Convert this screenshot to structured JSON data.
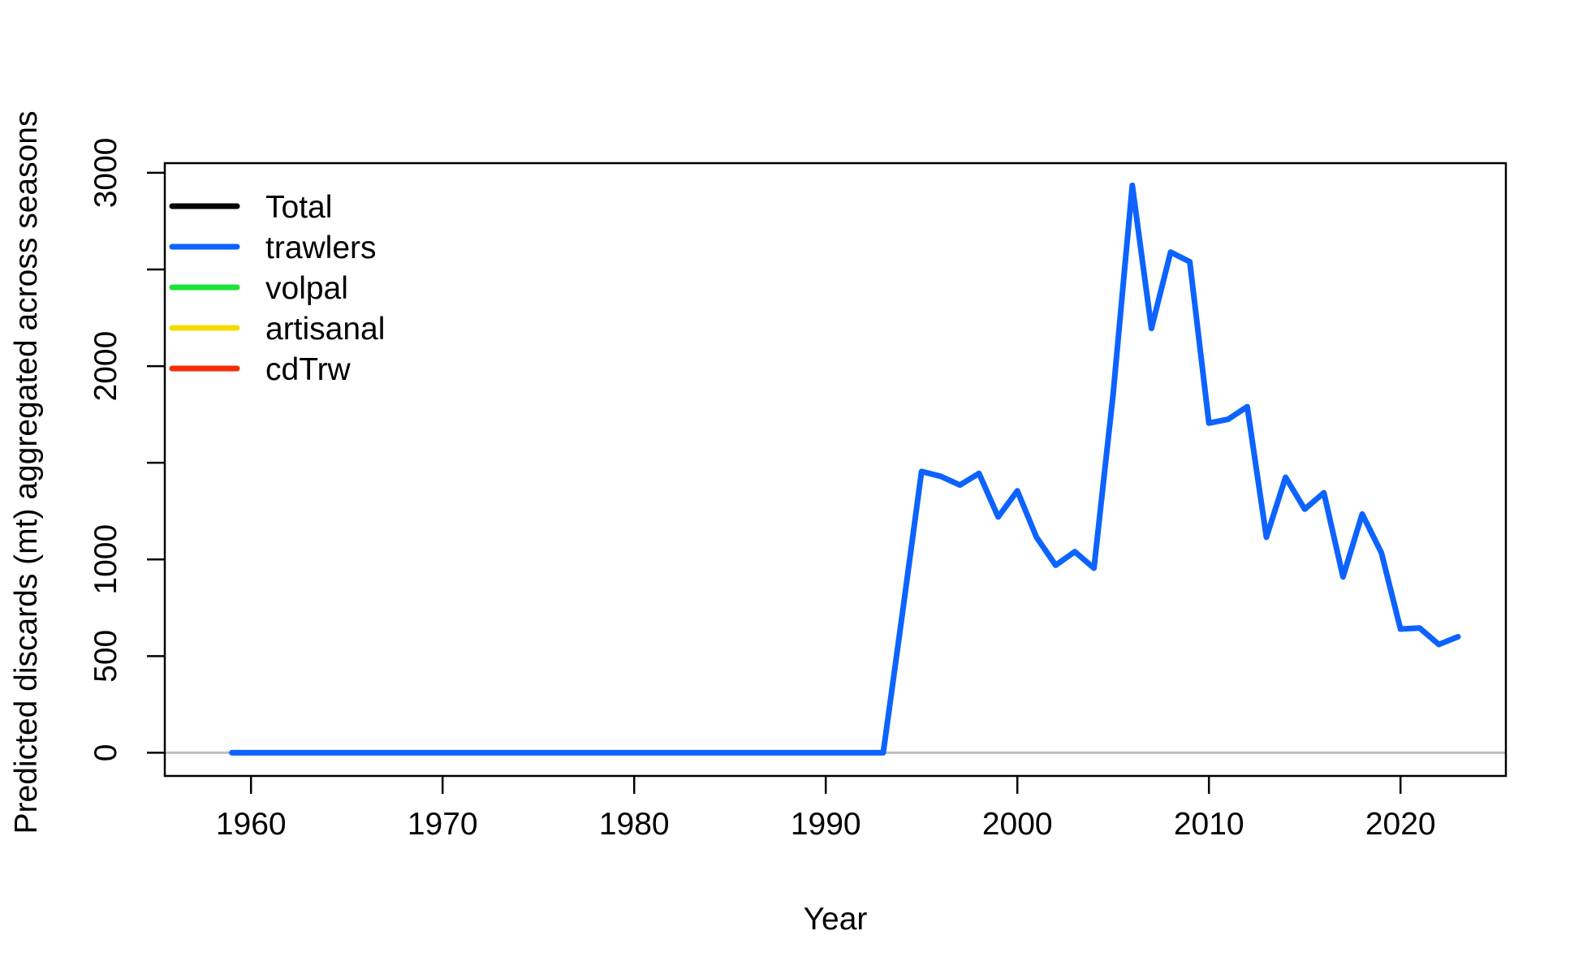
{
  "chart_data": {
    "type": "line",
    "title": "",
    "xlabel": "Year",
    "ylabel": "Predicted discards (mt) aggregated across seasons",
    "xlim": [
      1955.5,
      2025.5
    ],
    "ylim": [
      -120,
      3050
    ],
    "xticks": [
      1960,
      1970,
      1980,
      1990,
      2000,
      2010,
      2020
    ],
    "yticks": [
      0,
      500,
      1000,
      1500,
      2000,
      2500,
      3000
    ],
    "ytick_labels": [
      "0",
      "500",
      "1000",
      "",
      "2000",
      "",
      "3000"
    ],
    "reference_line": {
      "y": 0,
      "color": "#bebebe"
    },
    "legend_position": "top-left",
    "grid": false,
    "series": [
      {
        "name": "Total",
        "color": "#000000",
        "x": [],
        "values": []
      },
      {
        "name": "trawlers",
        "color": "#0d63ff",
        "x": [
          1959,
          1960,
          1961,
          1962,
          1963,
          1964,
          1965,
          1966,
          1967,
          1968,
          1969,
          1970,
          1971,
          1972,
          1973,
          1974,
          1975,
          1976,
          1977,
          1978,
          1979,
          1980,
          1981,
          1982,
          1983,
          1984,
          1985,
          1986,
          1987,
          1988,
          1989,
          1990,
          1991,
          1992,
          1993,
          1994,
          1995,
          1996,
          1997,
          1998,
          1999,
          2000,
          2001,
          2002,
          2003,
          2004,
          2005,
          2006,
          2007,
          2008,
          2009,
          2010,
          2011,
          2012,
          2013,
          2014,
          2015,
          2016,
          2017,
          2018,
          2019,
          2020,
          2021,
          2022,
          2023
        ],
        "values": [
          0,
          0,
          0,
          0,
          0,
          0,
          0,
          0,
          0,
          0,
          0,
          0,
          0,
          0,
          0,
          0,
          0,
          0,
          0,
          0,
          0,
          0,
          0,
          0,
          0,
          0,
          0,
          0,
          0,
          0,
          0,
          0,
          0,
          0,
          0,
          720,
          1455,
          1430,
          1385,
          1445,
          1220,
          1355,
          1115,
          970,
          1040,
          955,
          1855,
          2935,
          2195,
          2590,
          2540,
          1705,
          1725,
          1790,
          1115,
          1425,
          1260,
          1345,
          910,
          1235,
          1035,
          640,
          645,
          560,
          600
        ]
      },
      {
        "name": "volpal",
        "color": "#1be33a",
        "x": [],
        "values": []
      },
      {
        "name": "artisanal",
        "color": "#f5dc00",
        "x": [],
        "values": []
      },
      {
        "name": "cdTrw",
        "color": "#f52d0a",
        "x": [],
        "values": []
      }
    ]
  }
}
